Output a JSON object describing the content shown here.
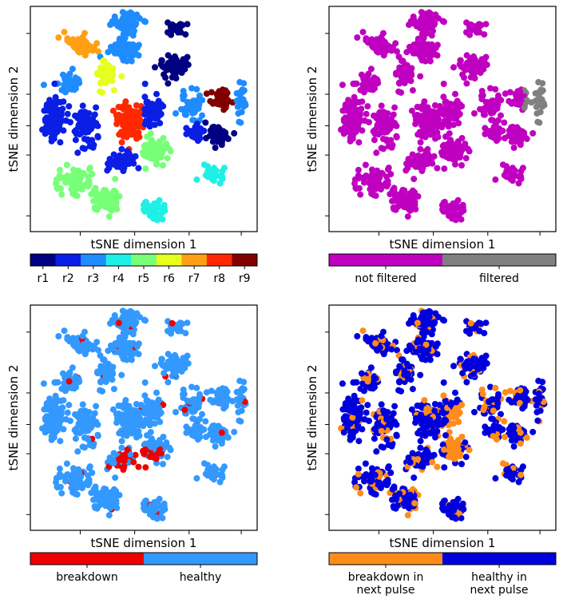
{
  "chart_data": [
    {
      "type": "scatter",
      "xlabel": "tSNE dimension 1",
      "ylabel": "tSNE dimension 2",
      "colorbar": {
        "labels": [
          "r1",
          "r2",
          "r3",
          "r4",
          "r5",
          "r6",
          "r7",
          "r8",
          "r9"
        ],
        "colors": [
          "#000080",
          "#0a1ee6",
          "#1e8cff",
          "#1ef0e6",
          "#78ff78",
          "#e6ff1e",
          "#ffa014",
          "#ff2800",
          "#800000"
        ]
      },
      "clusters": [
        {
          "cx": 0.42,
          "cy": 0.93,
          "sx": 0.06,
          "sy": 0.04,
          "n": 70,
          "color": "#1e8cff"
        },
        {
          "cx": 0.64,
          "cy": 0.9,
          "sx": 0.04,
          "sy": 0.02,
          "n": 30,
          "color": "#000080"
        },
        {
          "cx": 0.22,
          "cy": 0.83,
          "sx": 0.05,
          "sy": 0.05,
          "n": 60,
          "color": "#ffa014"
        },
        {
          "cx": 0.42,
          "cy": 0.81,
          "sx": 0.06,
          "sy": 0.04,
          "n": 60,
          "color": "#1e8cff"
        },
        {
          "cx": 0.62,
          "cy": 0.73,
          "sx": 0.06,
          "sy": 0.05,
          "n": 70,
          "color": "#000080"
        },
        {
          "cx": 0.33,
          "cy": 0.7,
          "sx": 0.04,
          "sy": 0.05,
          "n": 50,
          "color": "#e6ff1e"
        },
        {
          "cx": 0.84,
          "cy": 0.59,
          "sx": 0.04,
          "sy": 0.04,
          "n": 50,
          "color": "#800000"
        },
        {
          "cx": 0.17,
          "cy": 0.67,
          "sx": 0.05,
          "sy": 0.04,
          "n": 40,
          "color": "#1e8cff"
        },
        {
          "cx": 0.1,
          "cy": 0.5,
          "sx": 0.05,
          "sy": 0.09,
          "n": 100,
          "color": "#0a1ee6"
        },
        {
          "cx": 0.24,
          "cy": 0.48,
          "sx": 0.05,
          "sy": 0.07,
          "n": 80,
          "color": "#0a1ee6"
        },
        {
          "cx": 0.44,
          "cy": 0.49,
          "sx": 0.06,
          "sy": 0.07,
          "n": 110,
          "color": "#ff2800"
        },
        {
          "cx": 0.54,
          "cy": 0.54,
          "sx": 0.04,
          "sy": 0.06,
          "n": 50,
          "color": "#0a1ee6"
        },
        {
          "cx": 0.71,
          "cy": 0.55,
          "sx": 0.04,
          "sy": 0.06,
          "n": 50,
          "color": "#1e8cff"
        },
        {
          "cx": 0.83,
          "cy": 0.43,
          "sx": 0.05,
          "sy": 0.04,
          "n": 50,
          "color": "#000080"
        },
        {
          "cx": 0.93,
          "cy": 0.58,
          "sx": 0.02,
          "sy": 0.08,
          "n": 30,
          "color": "#1e8cff"
        },
        {
          "cx": 0.55,
          "cy": 0.36,
          "sx": 0.06,
          "sy": 0.05,
          "n": 70,
          "color": "#78ff78"
        },
        {
          "cx": 0.74,
          "cy": 0.44,
          "sx": 0.04,
          "sy": 0.04,
          "n": 30,
          "color": "#0a1ee6"
        },
        {
          "cx": 0.2,
          "cy": 0.23,
          "sx": 0.06,
          "sy": 0.05,
          "n": 70,
          "color": "#78ff78"
        },
        {
          "cx": 0.33,
          "cy": 0.14,
          "sx": 0.06,
          "sy": 0.05,
          "n": 70,
          "color": "#78ff78"
        },
        {
          "cx": 0.55,
          "cy": 0.09,
          "sx": 0.05,
          "sy": 0.04,
          "n": 40,
          "color": "#1ef0e6"
        },
        {
          "cx": 0.8,
          "cy": 0.25,
          "sx": 0.04,
          "sy": 0.03,
          "n": 35,
          "color": "#1ef0e6"
        },
        {
          "cx": 0.4,
          "cy": 0.31,
          "sx": 0.05,
          "sy": 0.05,
          "n": 40,
          "color": "#0a1ee6"
        }
      ]
    },
    {
      "type": "scatter",
      "xlabel": "tSNE dimension 1",
      "ylabel": "tSNE dimension 2",
      "colorbar": {
        "labels": [
          "not filtered",
          "filtered"
        ],
        "colors": [
          "#c000c0",
          "#808080"
        ]
      }
    },
    {
      "type": "scatter",
      "xlabel": "tSNE dimension 1",
      "ylabel": "tSNE dimension 2",
      "colorbar": {
        "labels": [
          "breakdown",
          "healthy"
        ],
        "colors": [
          "#ee0000",
          "#3399ff"
        ]
      }
    },
    {
      "type": "scatter",
      "xlabel": "tSNE dimension 1",
      "ylabel": "tSNE dimension 2",
      "colorbar": {
        "labels": [
          "breakdown in\nnext pulse",
          "healthy in\nnext pulse"
        ],
        "colors": [
          "#ff8c1a",
          "#0000dd"
        ]
      }
    }
  ]
}
